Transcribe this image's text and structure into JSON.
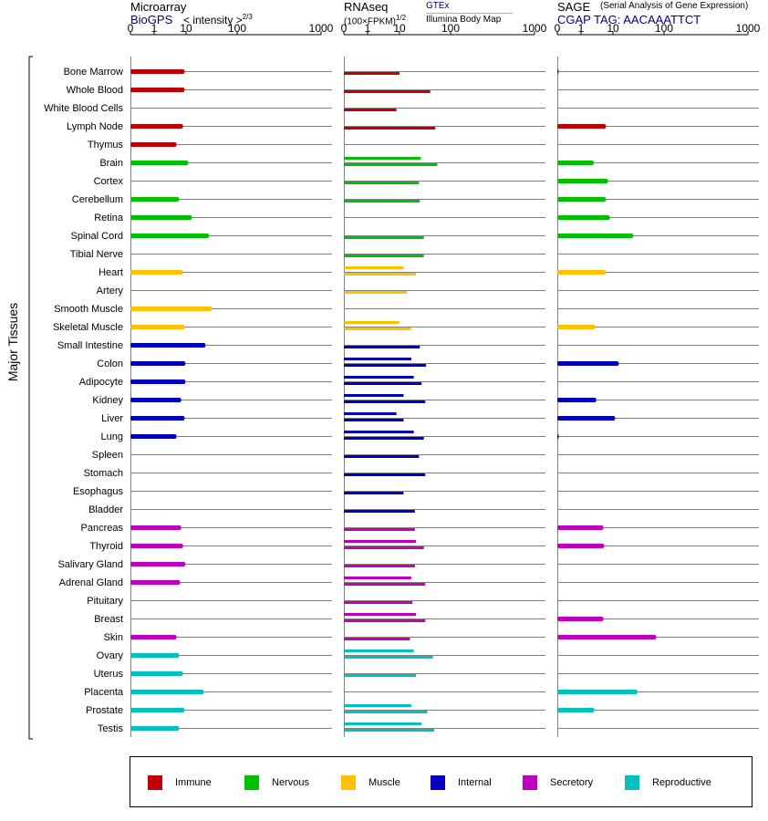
{
  "panels": [
    {
      "title": "Microarray",
      "source_link": "BioGPS",
      "unit_label": "< intensity >",
      "unit_exponent": "2/3",
      "ticks": [
        "0",
        "1",
        "10",
        "100",
        "1000"
      ]
    },
    {
      "title": "RNAseq",
      "unit_label": "(100×FPKM)",
      "unit_exponent": "1/2",
      "source_link": "GTEx",
      "source_sub": "Illumina Body Map",
      "ticks": [
        "0",
        "1",
        "10",
        "100",
        "1000"
      ]
    },
    {
      "title": "SAGE",
      "subtitle": "(Serial Analysis of Gene Expression)",
      "source_link": "CGAP TAG: AACAAATTCT",
      "ticks": [
        "0",
        "1",
        "10",
        "100",
        "1000"
      ]
    }
  ],
  "chart_data": {
    "type": "bar",
    "ylabel": "Major Tissues",
    "x_scale": "log-like (0, 1, 10, 100, 1000)",
    "categories": [
      "Bone Marrow",
      "Whole Blood",
      "White Blood Cells",
      "Lymph Node",
      "Thymus",
      "Brain",
      "Cortex",
      "Cerebellum",
      "Retina",
      "Spinal Cord",
      "Tibial Nerve",
      "Heart",
      "Artery",
      "Smooth Muscle",
      "Skeletal Muscle",
      "Small Intestine",
      "Colon",
      "Adipocyte",
      "Kidney",
      "Liver",
      "Lung",
      "Spleen",
      "Stomach",
      "Esophagus",
      "Bladder",
      "Pancreas",
      "Thyroid",
      "Salivary Gland",
      "Adrenal Gland",
      "Pituitary",
      "Breast",
      "Skin",
      "Ovary",
      "Uterus",
      "Placenta",
      "Prostate",
      "Testis"
    ],
    "groups": [
      "Immune",
      "Immune",
      "Immune",
      "Immune",
      "Immune",
      "Nervous",
      "Nervous",
      "Nervous",
      "Nervous",
      "Nervous",
      "Nervous",
      "Muscle",
      "Muscle",
      "Muscle",
      "Muscle",
      "Internal",
      "Internal",
      "Internal",
      "Internal",
      "Internal",
      "Internal",
      "Internal",
      "Internal",
      "Internal",
      "Internal",
      "Secretory",
      "Secretory",
      "Secretory",
      "Secretory",
      "Secretory",
      "Secretory",
      "Secretory",
      "Reproductive",
      "Reproductive",
      "Reproductive",
      "Reproductive",
      "Reproductive"
    ],
    "series": [
      {
        "name": "Microarray",
        "values": [
          9,
          9,
          null,
          8,
          5,
          11,
          null,
          6,
          13,
          28,
          null,
          8,
          null,
          32,
          9,
          24,
          9.5,
          9.5,
          7,
          9,
          5,
          null,
          null,
          null,
          null,
          7,
          8,
          9.5,
          6.5,
          null,
          null,
          5,
          6,
          8,
          22,
          9,
          6
        ]
      },
      {
        "name": "RNAseq",
        "values": [
          [
            null,
            10
          ],
          [
            null,
            40
          ],
          [
            null,
            8
          ],
          [
            null,
            50
          ],
          [
            null,
            null
          ],
          [
            26,
            55
          ],
          [
            null,
            24
          ],
          [
            null,
            25
          ],
          [
            null,
            null
          ],
          [
            null,
            30
          ],
          [
            null,
            30
          ],
          [
            12,
            21
          ],
          [
            null,
            14
          ],
          [
            null,
            null
          ],
          [
            10,
            17
          ],
          [
            null,
            25
          ],
          [
            17,
            33
          ],
          [
            19,
            27
          ],
          [
            12,
            32
          ],
          [
            8,
            12
          ],
          [
            19,
            30
          ],
          [
            null,
            24
          ],
          [
            null,
            32
          ],
          [
            null,
            12
          ],
          [
            null,
            20
          ],
          [
            null,
            20
          ],
          [
            21,
            30
          ],
          [
            null,
            20
          ],
          [
            17,
            32
          ],
          [
            null,
            18
          ],
          [
            21,
            32
          ],
          [
            null,
            16
          ],
          [
            19,
            45
          ],
          [
            null,
            21
          ],
          [
            null,
            null
          ],
          [
            17,
            35
          ],
          [
            27,
            48
          ]
        ]
      },
      {
        "name": "SAGE",
        "values": [
          0.02,
          null,
          null,
          6,
          null,
          2.5,
          7,
          6,
          8,
          25,
          null,
          6,
          null,
          null,
          2.8,
          null,
          13,
          null,
          3,
          11,
          0.02,
          null,
          null,
          null,
          null,
          5,
          5.3,
          null,
          null,
          null,
          5,
          70,
          null,
          null,
          30,
          2.6,
          null
        ]
      }
    ]
  },
  "legend": [
    {
      "label": "Immune",
      "color": "#c00000"
    },
    {
      "label": "Nervous",
      "color": "#00c000"
    },
    {
      "label": "Muscle",
      "color": "#ffc000"
    },
    {
      "label": "Internal",
      "color": "#0000c0"
    },
    {
      "label": "Secretory",
      "color": "#c000c0"
    },
    {
      "label": "Reproductive",
      "color": "#00c0c0"
    }
  ],
  "colors": {
    "Immune": "#c00000",
    "Nervous": "#00c000",
    "Muscle": "#ffc000",
    "Internal": "#0000c0",
    "Secretory": "#c000c0",
    "Reproductive": "#00c0c0",
    "link": "#000080",
    "grid": "#808080"
  }
}
